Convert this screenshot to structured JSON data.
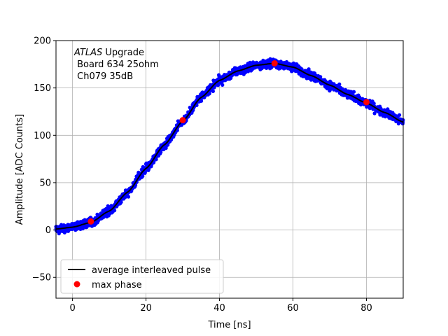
{
  "chart_data": {
    "type": "scatter",
    "xlabel": "Time [ns]",
    "ylabel": "Amplitude [ADC Counts]",
    "xlim": [
      -4.5,
      90
    ],
    "ylim": [
      -72,
      200
    ],
    "xticks": [
      0,
      20,
      40,
      60,
      80
    ],
    "yticks": [
      -50,
      0,
      50,
      100,
      150,
      200
    ],
    "grid": true,
    "legend_position": "lower-left",
    "annotations": {
      "experiment": "ATLAS",
      "experiment_suffix": " Upgrade",
      "line2": " Board 634 25ohm",
      "line3": " Ch079 35dB"
    },
    "colors": {
      "samples": "#0000ff",
      "average": "#000000",
      "max_phase": "#ff0000"
    },
    "series": [
      {
        "kind": "line",
        "name": "average interleaved pulse",
        "x": [
          -4.5,
          0,
          5,
          10,
          15,
          20,
          25,
          30,
          35,
          40,
          45,
          50,
          55,
          60,
          65,
          70,
          75,
          80,
          85,
          90
        ],
        "y": [
          1,
          3,
          8,
          20,
          40,
          65,
          90,
          115,
          140,
          158,
          168,
          174,
          176,
          172,
          163,
          153,
          143,
          134,
          124,
          114
        ]
      },
      {
        "kind": "points",
        "name": "max phase",
        "x": [
          5,
          30,
          55,
          80
        ],
        "y": [
          9,
          116,
          176,
          135
        ]
      }
    ]
  }
}
